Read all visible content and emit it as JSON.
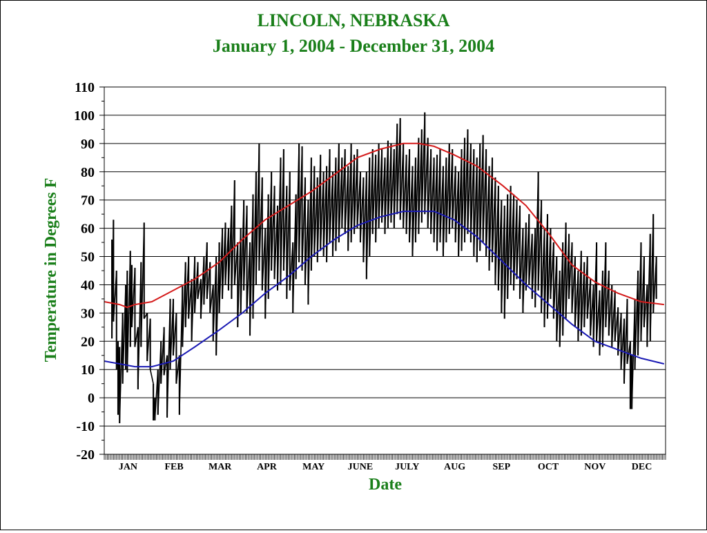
{
  "chart_data": {
    "type": "line",
    "title": "LINCOLN, NEBRASKA",
    "subtitle": "January 1, 2004 - December 31, 2004",
    "xlabel": "Date",
    "ylabel": "Temperature in Degrees F",
    "ylim": [
      -20,
      110
    ],
    "yticks": [
      110,
      100,
      90,
      80,
      70,
      60,
      50,
      40,
      30,
      20,
      10,
      0,
      -10,
      -20
    ],
    "xlim": [
      0,
      366
    ],
    "month_labels": [
      "JAN",
      "FEB",
      "MAR",
      "APR",
      "MAY",
      "JUNE",
      "JULY",
      "AUG",
      "SEP",
      "OCT",
      "NOV",
      "DEC"
    ],
    "grid": true,
    "series": [
      {
        "role": "daily_range",
        "color": "#000000",
        "points": [
          {
            "x": 5,
            "low": 21,
            "high": 56
          },
          {
            "x": 6,
            "low": 27,
            "high": 63
          },
          {
            "x": 8,
            "low": 10,
            "high": 45
          },
          {
            "x": 9,
            "low": -6,
            "high": 20
          },
          {
            "x": 10,
            "low": -9,
            "high": 18
          },
          {
            "x": 12,
            "low": 5,
            "high": 30
          },
          {
            "x": 14,
            "low": 10,
            "high": 40
          },
          {
            "x": 15,
            "low": 9,
            "high": 45
          },
          {
            "x": 17,
            "low": 18,
            "high": 52
          },
          {
            "x": 18,
            "low": 25,
            "high": 47
          },
          {
            "x": 20,
            "low": 18,
            "high": 46
          },
          {
            "x": 22,
            "low": 3,
            "high": 25
          },
          {
            "x": 24,
            "low": 18,
            "high": 48
          },
          {
            "x": 26,
            "low": 28,
            "high": 62
          },
          {
            "x": 28,
            "low": 13,
            "high": 30
          },
          {
            "x": 30,
            "low": 10,
            "high": 28
          },
          {
            "x": 32,
            "low": -8,
            "high": 5
          },
          {
            "x": 33,
            "low": -8,
            "high": 0
          },
          {
            "x": 35,
            "low": -6,
            "high": 10
          },
          {
            "x": 37,
            "low": 5,
            "high": 20
          },
          {
            "x": 39,
            "low": 8,
            "high": 25
          },
          {
            "x": 41,
            "low": -7,
            "high": 15
          },
          {
            "x": 43,
            "low": 10,
            "high": 35
          },
          {
            "x": 45,
            "low": 15,
            "high": 35
          },
          {
            "x": 47,
            "low": 5,
            "high": 30
          },
          {
            "x": 49,
            "low": -6,
            "high": 15
          },
          {
            "x": 51,
            "low": 18,
            "high": 40
          },
          {
            "x": 53,
            "low": 25,
            "high": 48
          },
          {
            "x": 55,
            "low": 28,
            "high": 50
          },
          {
            "x": 57,
            "low": 20,
            "high": 42
          },
          {
            "x": 59,
            "low": 30,
            "high": 50
          },
          {
            "x": 61,
            "low": 35,
            "high": 48
          },
          {
            "x": 63,
            "low": 28,
            "high": 42
          },
          {
            "x": 65,
            "low": 33,
            "high": 50
          },
          {
            "x": 67,
            "low": 35,
            "high": 55
          },
          {
            "x": 69,
            "low": 30,
            "high": 48
          },
          {
            "x": 71,
            "low": 20,
            "high": 40
          },
          {
            "x": 73,
            "low": 15,
            "high": 50
          },
          {
            "x": 75,
            "low": 30,
            "high": 55
          },
          {
            "x": 77,
            "low": 35,
            "high": 60
          },
          {
            "x": 79,
            "low": 40,
            "high": 62
          },
          {
            "x": 81,
            "low": 38,
            "high": 60
          },
          {
            "x": 83,
            "low": 35,
            "high": 68
          },
          {
            "x": 85,
            "low": 40,
            "high": 77
          },
          {
            "x": 87,
            "low": 25,
            "high": 55
          },
          {
            "x": 89,
            "low": 30,
            "high": 60
          },
          {
            "x": 91,
            "low": 38,
            "high": 70
          },
          {
            "x": 93,
            "low": 30,
            "high": 68
          },
          {
            "x": 95,
            "low": 22,
            "high": 55
          },
          {
            "x": 97,
            "low": 28,
            "high": 72
          },
          {
            "x": 99,
            "low": 40,
            "high": 80
          },
          {
            "x": 101,
            "low": 45,
            "high": 90
          },
          {
            "x": 103,
            "low": 38,
            "high": 78
          },
          {
            "x": 105,
            "low": 28,
            "high": 60
          },
          {
            "x": 107,
            "low": 35,
            "high": 72
          },
          {
            "x": 109,
            "low": 45,
            "high": 80
          },
          {
            "x": 111,
            "low": 42,
            "high": 75
          },
          {
            "x": 113,
            "low": 38,
            "high": 68
          },
          {
            "x": 115,
            "low": 40,
            "high": 85
          },
          {
            "x": 117,
            "low": 45,
            "high": 88
          },
          {
            "x": 119,
            "low": 35,
            "high": 75
          },
          {
            "x": 121,
            "low": 38,
            "high": 80
          },
          {
            "x": 123,
            "low": 30,
            "high": 55
          },
          {
            "x": 125,
            "low": 42,
            "high": 72
          },
          {
            "x": 127,
            "low": 48,
            "high": 90
          },
          {
            "x": 129,
            "low": 45,
            "high": 89
          },
          {
            "x": 131,
            "low": 40,
            "high": 78
          },
          {
            "x": 133,
            "low": 33,
            "high": 70
          },
          {
            "x": 135,
            "low": 45,
            "high": 85
          },
          {
            "x": 137,
            "low": 50,
            "high": 82
          },
          {
            "x": 139,
            "low": 48,
            "high": 78
          },
          {
            "x": 141,
            "low": 52,
            "high": 86
          },
          {
            "x": 143,
            "low": 50,
            "high": 80
          },
          {
            "x": 145,
            "low": 48,
            "high": 82
          },
          {
            "x": 147,
            "low": 55,
            "high": 88
          },
          {
            "x": 149,
            "low": 50,
            "high": 80
          },
          {
            "x": 151,
            "low": 52,
            "high": 85
          },
          {
            "x": 153,
            "low": 55,
            "high": 90
          },
          {
            "x": 155,
            "low": 60,
            "high": 85
          },
          {
            "x": 157,
            "low": 58,
            "high": 88
          },
          {
            "x": 159,
            "low": 52,
            "high": 82
          },
          {
            "x": 161,
            "low": 55,
            "high": 90
          },
          {
            "x": 163,
            "low": 58,
            "high": 86
          },
          {
            "x": 165,
            "low": 60,
            "high": 88
          },
          {
            "x": 167,
            "low": 55,
            "high": 80
          },
          {
            "x": 169,
            "low": 48,
            "high": 78
          },
          {
            "x": 171,
            "low": 42,
            "high": 80
          },
          {
            "x": 173,
            "low": 50,
            "high": 85
          },
          {
            "x": 175,
            "low": 58,
            "high": 88
          },
          {
            "x": 177,
            "low": 55,
            "high": 86
          },
          {
            "x": 179,
            "low": 60,
            "high": 90
          },
          {
            "x": 181,
            "low": 62,
            "high": 88
          },
          {
            "x": 183,
            "low": 58,
            "high": 85
          },
          {
            "x": 185,
            "low": 60,
            "high": 91
          },
          {
            "x": 187,
            "low": 62,
            "high": 90
          },
          {
            "x": 189,
            "low": 60,
            "high": 88
          },
          {
            "x": 191,
            "low": 65,
            "high": 97
          },
          {
            "x": 193,
            "low": 63,
            "high": 99
          },
          {
            "x": 195,
            "low": 60,
            "high": 90
          },
          {
            "x": 197,
            "low": 58,
            "high": 86
          },
          {
            "x": 199,
            "low": 55,
            "high": 88
          },
          {
            "x": 201,
            "low": 50,
            "high": 82
          },
          {
            "x": 203,
            "low": 55,
            "high": 85
          },
          {
            "x": 205,
            "low": 58,
            "high": 92
          },
          {
            "x": 207,
            "low": 62,
            "high": 95
          },
          {
            "x": 209,
            "low": 65,
            "high": 101
          },
          {
            "x": 211,
            "low": 60,
            "high": 92
          },
          {
            "x": 213,
            "low": 58,
            "high": 88
          },
          {
            "x": 215,
            "low": 55,
            "high": 85
          },
          {
            "x": 217,
            "low": 52,
            "high": 86
          },
          {
            "x": 219,
            "low": 55,
            "high": 88
          },
          {
            "x": 221,
            "low": 50,
            "high": 82
          },
          {
            "x": 223,
            "low": 55,
            "high": 85
          },
          {
            "x": 225,
            "low": 58,
            "high": 90
          },
          {
            "x": 227,
            "low": 60,
            "high": 88
          },
          {
            "x": 229,
            "low": 55,
            "high": 82
          },
          {
            "x": 231,
            "low": 50,
            "high": 80
          },
          {
            "x": 233,
            "low": 52,
            "high": 88
          },
          {
            "x": 235,
            "low": 55,
            "high": 92
          },
          {
            "x": 237,
            "low": 58,
            "high": 95
          },
          {
            "x": 239,
            "low": 55,
            "high": 90
          },
          {
            "x": 241,
            "low": 50,
            "high": 88
          },
          {
            "x": 243,
            "low": 48,
            "high": 85
          },
          {
            "x": 245,
            "low": 52,
            "high": 90
          },
          {
            "x": 247,
            "low": 55,
            "high": 93
          },
          {
            "x": 249,
            "low": 50,
            "high": 88
          },
          {
            "x": 251,
            "low": 45,
            "high": 82
          },
          {
            "x": 253,
            "low": 48,
            "high": 85
          },
          {
            "x": 255,
            "low": 40,
            "high": 78
          },
          {
            "x": 257,
            "low": 38,
            "high": 75
          },
          {
            "x": 259,
            "low": 30,
            "high": 70
          },
          {
            "x": 261,
            "low": 28,
            "high": 68
          },
          {
            "x": 263,
            "low": 35,
            "high": 72
          },
          {
            "x": 265,
            "low": 40,
            "high": 75
          },
          {
            "x": 267,
            "low": 38,
            "high": 72
          },
          {
            "x": 269,
            "low": 42,
            "high": 70
          },
          {
            "x": 271,
            "low": 35,
            "high": 68
          },
          {
            "x": 273,
            "low": 30,
            "high": 60
          },
          {
            "x": 275,
            "low": 38,
            "high": 62
          },
          {
            "x": 277,
            "low": 40,
            "high": 65
          },
          {
            "x": 279,
            "low": 35,
            "high": 58
          },
          {
            "x": 281,
            "low": 32,
            "high": 60
          },
          {
            "x": 283,
            "low": 38,
            "high": 80
          },
          {
            "x": 285,
            "low": 30,
            "high": 70
          },
          {
            "x": 287,
            "low": 25,
            "high": 60
          },
          {
            "x": 289,
            "low": 28,
            "high": 65
          },
          {
            "x": 291,
            "low": 35,
            "high": 60
          },
          {
            "x": 293,
            "low": 28,
            "high": 55
          },
          {
            "x": 295,
            "low": 20,
            "high": 50
          },
          {
            "x": 297,
            "low": 18,
            "high": 45
          },
          {
            "x": 299,
            "low": 22,
            "high": 55
          },
          {
            "x": 301,
            "low": 28,
            "high": 62
          },
          {
            "x": 303,
            "low": 35,
            "high": 58
          },
          {
            "x": 305,
            "low": 30,
            "high": 55
          },
          {
            "x": 307,
            "low": 25,
            "high": 50
          },
          {
            "x": 309,
            "low": 20,
            "high": 45
          },
          {
            "x": 311,
            "low": 22,
            "high": 52
          },
          {
            "x": 313,
            "low": 25,
            "high": 48
          },
          {
            "x": 315,
            "low": 28,
            "high": 50
          },
          {
            "x": 317,
            "low": 22,
            "high": 42
          },
          {
            "x": 319,
            "low": 18,
            "high": 40
          },
          {
            "x": 321,
            "low": 20,
            "high": 55
          },
          {
            "x": 323,
            "low": 15,
            "high": 38
          },
          {
            "x": 325,
            "low": 18,
            "high": 45
          },
          {
            "x": 327,
            "low": 25,
            "high": 55
          },
          {
            "x": 329,
            "low": 22,
            "high": 45
          },
          {
            "x": 331,
            "low": 18,
            "high": 40
          },
          {
            "x": 333,
            "low": 20,
            "high": 38
          },
          {
            "x": 335,
            "low": 15,
            "high": 32
          },
          {
            "x": 337,
            "low": 10,
            "high": 30
          },
          {
            "x": 339,
            "low": 5,
            "high": 28
          },
          {
            "x": 341,
            "low": 12,
            "high": 35
          },
          {
            "x": 343,
            "low": -4,
            "high": 20
          },
          {
            "x": 344,
            "low": -4,
            "high": 15
          },
          {
            "x": 346,
            "low": 10,
            "high": 35
          },
          {
            "x": 348,
            "low": 15,
            "high": 45
          },
          {
            "x": 350,
            "low": 20,
            "high": 55
          },
          {
            "x": 352,
            "low": 25,
            "high": 50
          },
          {
            "x": 354,
            "low": 18,
            "high": 40
          },
          {
            "x": 356,
            "low": 20,
            "high": 58
          },
          {
            "x": 358,
            "low": 30,
            "high": 65
          },
          {
            "x": 360,
            "low": 35,
            "high": 50
          }
        ]
      },
      {
        "role": "normal_high",
        "color": "#d41a1a",
        "x": [
          0,
          10,
          15,
          20,
          31,
          45,
          59,
          75,
          90,
          105,
          120,
          135,
          150,
          165,
          180,
          195,
          205,
          215,
          228,
          243,
          260,
          275,
          290,
          305,
          320,
          335,
          350,
          365
        ],
        "y": [
          34,
          33,
          32,
          33,
          34,
          38,
          42,
          48,
          56,
          63,
          68,
          73,
          79,
          85,
          88,
          90,
          90,
          89,
          86,
          82,
          75,
          68,
          58,
          47,
          41,
          37,
          34,
          33
        ]
      },
      {
        "role": "normal_low",
        "color": "#1a1ab4",
        "x": [
          0,
          10,
          20,
          31,
          45,
          59,
          75,
          90,
          105,
          120,
          135,
          150,
          165,
          180,
          195,
          205,
          215,
          228,
          243,
          260,
          275,
          290,
          305,
          320,
          335,
          350,
          365
        ],
        "y": [
          13,
          12,
          11,
          11,
          13,
          18,
          24,
          30,
          37,
          43,
          50,
          56,
          61,
          64,
          66,
          66,
          66,
          63,
          57,
          48,
          40,
          33,
          26,
          20,
          17,
          14,
          12
        ]
      }
    ]
  }
}
